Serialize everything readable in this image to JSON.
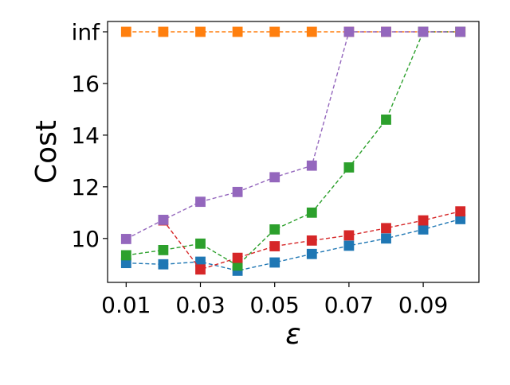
{
  "chart_data": {
    "type": "line",
    "title": "",
    "xlabel": "ε",
    "ylabel": "Cost",
    "x": [
      0.01,
      0.02,
      0.03,
      0.04,
      0.05,
      0.06,
      0.07,
      0.08,
      0.09,
      0.1
    ],
    "xticks": [
      0.01,
      0.03,
      0.05,
      0.07,
      0.09
    ],
    "xtick_labels": [
      "0.01",
      "0.03",
      "0.05",
      "0.07",
      "0.09"
    ],
    "xlim": [
      0.005,
      0.105
    ],
    "yticks": [
      10,
      12,
      14,
      16,
      18
    ],
    "ytick_labels": [
      "10",
      "12",
      "14",
      "16",
      "inf"
    ],
    "ylim": [
      8.3,
      18.4
    ],
    "inf_plotted_at": 18,
    "grid": false,
    "legend": "none",
    "line_style": "dashed",
    "marker": "square",
    "series": [
      {
        "color": "#1f77b4",
        "values": [
          9.05,
          9.0,
          9.1,
          8.75,
          9.07,
          9.4,
          9.72,
          10.0,
          10.35,
          10.75
        ]
      },
      {
        "color": "#ff7f0e",
        "values": [
          "inf",
          "inf",
          "inf",
          "inf",
          "inf",
          "inf",
          "inf",
          "inf",
          "inf",
          "inf"
        ]
      },
      {
        "color": "#2ca02c",
        "values": [
          9.35,
          9.55,
          9.8,
          8.95,
          10.35,
          11.0,
          12.75,
          14.6,
          "inf",
          "inf"
        ]
      },
      {
        "color": "#d62728",
        "values": [
          null,
          10.7,
          8.8,
          9.25,
          9.7,
          9.92,
          10.12,
          10.4,
          10.7,
          11.05
        ]
      },
      {
        "color": "#9467bd",
        "values": [
          9.98,
          10.72,
          11.42,
          11.8,
          12.37,
          12.82,
          "inf",
          "inf",
          "inf",
          "inf"
        ]
      }
    ]
  }
}
